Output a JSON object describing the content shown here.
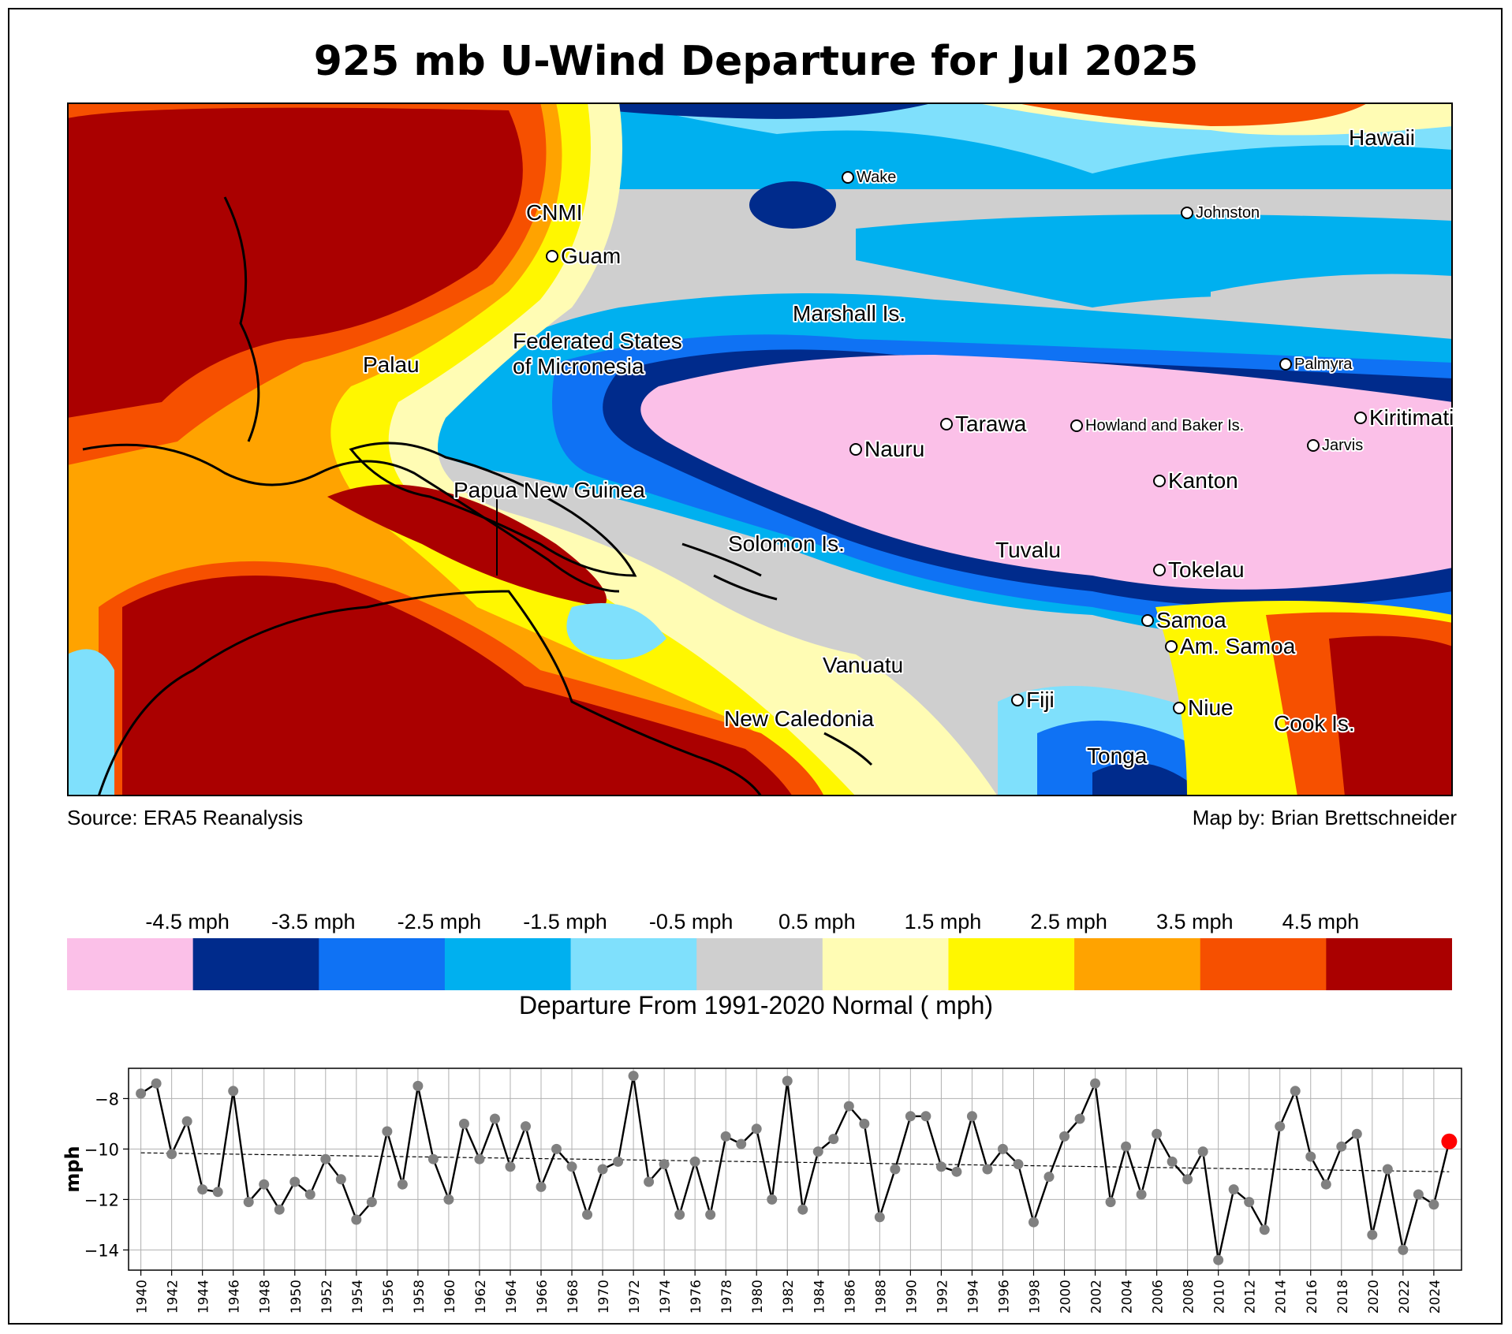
{
  "title": "925 mb U-Wind Departure for Jul 2025",
  "source": "Source: ERA5 Reanalysis",
  "credit": "Map by: Brian Brettschneider",
  "colorbar": {
    "label": "Departure From 1991-2020 Normal ( mph)",
    "ticks": [
      "-4.5 mph",
      "-3.5 mph",
      "-2.5 mph",
      "-1.5 mph",
      "-0.5 mph",
      "0.5 mph",
      "1.5 mph",
      "2.5 mph",
      "3.5 mph",
      "4.5 mph"
    ],
    "colors": [
      "#fbc0e8",
      "#002b8c",
      "#0f72f4",
      "#00b0ef",
      "#7fe0fc",
      "#cfcfcf",
      "#fffcb4",
      "#fff700",
      "#ffa300",
      "#f65000",
      "#aa0000"
    ]
  },
  "map_labels": [
    {
      "text": "Hawaii",
      "size": "large",
      "dot": false
    },
    {
      "text": "Wake",
      "size": "small",
      "dot": true
    },
    {
      "text": "Johnston",
      "size": "small",
      "dot": true
    },
    {
      "text": "CNMI",
      "size": "large",
      "dot": false
    },
    {
      "text": "Guam",
      "size": "large",
      "dot": true
    },
    {
      "text": "Marshall Is.",
      "size": "large",
      "dot": false
    },
    {
      "text": "Federated States",
      "size": "large",
      "dot": false
    },
    {
      "text": "of Micronesia",
      "size": "large",
      "dot": false
    },
    {
      "text": "Palau",
      "size": "large",
      "dot": false
    },
    {
      "text": "Palmyra",
      "size": "small",
      "dot": true
    },
    {
      "text": "Tarawa",
      "size": "large",
      "dot": true
    },
    {
      "text": "Howland and Baker Is.",
      "size": "small",
      "dot": true
    },
    {
      "text": "Kiritimati",
      "size": "large",
      "dot": true
    },
    {
      "text": "Nauru",
      "size": "large",
      "dot": true
    },
    {
      "text": "Jarvis",
      "size": "small",
      "dot": true
    },
    {
      "text": "Kanton",
      "size": "large",
      "dot": true
    },
    {
      "text": "Papua New Guinea",
      "size": "large",
      "dot": false
    },
    {
      "text": "Solomon Is.",
      "size": "large",
      "dot": false
    },
    {
      "text": "Tuvalu",
      "size": "large",
      "dot": false
    },
    {
      "text": "Tokelau",
      "size": "large",
      "dot": true
    },
    {
      "text": "Samoa",
      "size": "large",
      "dot": true
    },
    {
      "text": "Am. Samoa",
      "size": "large",
      "dot": true
    },
    {
      "text": "Vanuatu",
      "size": "large",
      "dot": false
    },
    {
      "text": "Fiji",
      "size": "large",
      "dot": true
    },
    {
      "text": "Niue",
      "size": "large",
      "dot": true
    },
    {
      "text": "New Caledonia",
      "size": "large",
      "dot": false
    },
    {
      "text": "Cook Is.",
      "size": "large",
      "dot": false
    },
    {
      "text": "Tonga",
      "size": "large",
      "dot": false
    }
  ],
  "chart_data": {
    "type": "line",
    "title": "",
    "xlabel": "",
    "ylabel": "mph",
    "x": [
      1940,
      1941,
      1942,
      1943,
      1944,
      1945,
      1946,
      1947,
      1948,
      1949,
      1950,
      1951,
      1952,
      1953,
      1954,
      1955,
      1956,
      1957,
      1958,
      1959,
      1960,
      1961,
      1962,
      1963,
      1964,
      1965,
      1966,
      1967,
      1968,
      1969,
      1970,
      1971,
      1972,
      1973,
      1974,
      1975,
      1976,
      1977,
      1978,
      1979,
      1980,
      1981,
      1982,
      1983,
      1984,
      1985,
      1986,
      1987,
      1988,
      1989,
      1990,
      1991,
      1992,
      1993,
      1994,
      1995,
      1996,
      1997,
      1998,
      1999,
      2000,
      2001,
      2002,
      2003,
      2004,
      2005,
      2006,
      2007,
      2008,
      2009,
      2010,
      2011,
      2012,
      2013,
      2014,
      2015,
      2016,
      2017,
      2018,
      2019,
      2020,
      2021,
      2022,
      2023,
      2024,
      2025
    ],
    "values": [
      -7.8,
      -7.4,
      -10.2,
      -8.9,
      -11.6,
      -11.7,
      -7.7,
      -12.1,
      -11.4,
      -12.4,
      -11.3,
      -11.8,
      -10.4,
      -11.2,
      -12.8,
      -12.1,
      -9.3,
      -11.4,
      -7.5,
      -10.4,
      -12.0,
      -9.0,
      -10.4,
      -8.8,
      -10.7,
      -9.1,
      -11.5,
      -10.0,
      -10.7,
      -12.6,
      -10.8,
      -10.5,
      -7.1,
      -11.3,
      -10.6,
      -12.6,
      -10.5,
      -12.6,
      -9.5,
      -9.8,
      -9.2,
      -12.0,
      -7.3,
      -12.4,
      -10.1,
      -9.6,
      -8.3,
      -9.0,
      -12.7,
      -10.8,
      -8.7,
      -8.7,
      -10.7,
      -10.9,
      -8.7,
      -10.8,
      -10.0,
      -10.6,
      -12.9,
      -11.1,
      -9.5,
      -8.8,
      -7.4,
      -12.1,
      -9.9,
      -11.8,
      -9.4,
      -10.5,
      -11.2,
      -10.1,
      -14.4,
      -11.6,
      -12.1,
      -13.2,
      -9.1,
      -7.7,
      -10.3,
      -11.4,
      -9.9,
      -9.4,
      -13.4,
      -10.8,
      -14.0,
      -11.8,
      -12.2,
      -9.7
    ],
    "trend": [
      -10.15,
      -10.9
    ],
    "highlight_year": 2025,
    "ylim": [
      -14.8,
      -6.8
    ],
    "yticks": [
      -14,
      -12,
      -10,
      -8
    ],
    "xticks": [
      1940,
      1942,
      1944,
      1946,
      1948,
      1950,
      1952,
      1954,
      1956,
      1958,
      1960,
      1962,
      1964,
      1966,
      1968,
      1970,
      1972,
      1974,
      1976,
      1978,
      1980,
      1982,
      1984,
      1986,
      1988,
      1990,
      1992,
      1994,
      1996,
      1998,
      2000,
      2002,
      2004,
      2006,
      2008,
      2010,
      2012,
      2014,
      2016,
      2018,
      2020,
      2022,
      2024
    ],
    "grid": true,
    "line_color": "#000000",
    "marker_color": "#808080",
    "highlight_color": "#ff0000"
  }
}
